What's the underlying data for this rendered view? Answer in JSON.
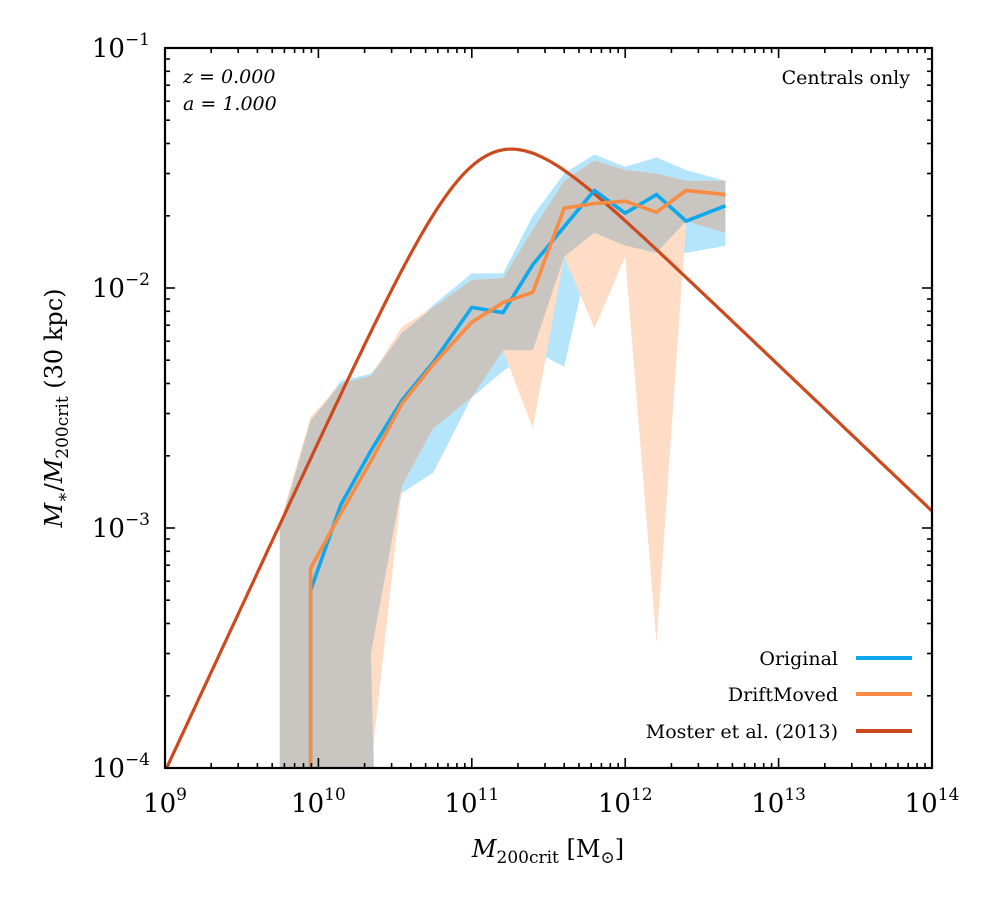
{
  "chart_data": {
    "type": "line",
    "xscale": "log",
    "yscale": "log",
    "xlim": [
      1000000000.0,
      100000000000000.0
    ],
    "ylim": [
      0.0001,
      0.1
    ],
    "x_ticks": [
      {
        "value": 1000000000.0,
        "base": "10",
        "exp": "9"
      },
      {
        "value": 10000000000.0,
        "base": "10",
        "exp": "10"
      },
      {
        "value": 100000000000.0,
        "base": "10",
        "exp": "11"
      },
      {
        "value": 1000000000000.0,
        "base": "10",
        "exp": "12"
      },
      {
        "value": 10000000000000.0,
        "base": "10",
        "exp": "13"
      },
      {
        "value": 100000000000000.0,
        "base": "10",
        "exp": "14"
      }
    ],
    "y_ticks": [
      {
        "value": 0.0001,
        "base": "10",
        "exp": "−4"
      },
      {
        "value": 0.001,
        "base": "10",
        "exp": "−3"
      },
      {
        "value": 0.01,
        "base": "10",
        "exp": "−2"
      },
      {
        "value": 0.1,
        "base": "10",
        "exp": "−1"
      }
    ],
    "xlabel": {
      "main": "M",
      "sub": "200crit",
      "unit": " [M",
      "unit_sub": "⊙",
      "close": "]"
    },
    "ylabel": {
      "m1": "M",
      "s1": "∗",
      "slash": "/",
      "m2": "M",
      "s2": "200crit",
      "rest": " (30 kpc)"
    },
    "annotations": {
      "redshift": "z = 0.000",
      "scale_factor": "a = 1.000",
      "selection": "Centrals only"
    },
    "legend_position": "lower-right",
    "series": [
      {
        "name": "Original",
        "color": "#0ea8ec",
        "style": "line",
        "x": [
          8900000000.0,
          14000000000.0,
          22000000000.0,
          35000000000.0,
          56000000000.0,
          100000000000.0,
          160000000000.0,
          250000000000.0,
          400000000000.0,
          630000000000.0,
          1000000000000.0,
          1600000000000.0,
          2500000000000.0,
          4500000000000.0
        ],
        "y": [
          0.00055,
          0.00125,
          0.0021,
          0.0034,
          0.0049,
          0.0083,
          0.0079,
          0.0125,
          0.018,
          0.0255,
          0.0205,
          0.0245,
          0.019,
          0.022
        ],
        "band_low": [
          0.0001,
          0.0001,
          0.0003,
          0.0014,
          0.0017,
          0.0035,
          0.0045,
          0.0055,
          0.0047,
          0.017,
          0.015,
          0.014,
          0.014,
          0.015
        ],
        "band_high": [
          0.0028,
          0.0041,
          0.0044,
          0.0065,
          0.0085,
          0.0115,
          0.0115,
          0.02,
          0.03,
          0.036,
          0.032,
          0.035,
          0.031,
          0.028
        ]
      },
      {
        "name": "DriftMoved",
        "color": "#f98b42",
        "style": "line",
        "x": [
          8900000000.0,
          14000000000.0,
          22000000000.0,
          35000000000.0,
          56000000000.0,
          100000000000.0,
          160000000000.0,
          250000000000.0,
          400000000000.0,
          630000000000.0,
          1000000000000.0,
          1600000000000.0,
          2500000000000.0,
          4500000000000.0
        ],
        "y": [
          0.00068,
          0.00115,
          0.0019,
          0.0033,
          0.0048,
          0.0072,
          0.0087,
          0.0096,
          0.0215,
          0.0225,
          0.023,
          0.0207,
          0.0255,
          0.0245
        ],
        "band_low": [
          0.0001,
          0.0001,
          0.0001,
          0.0015,
          0.0026,
          0.0035,
          0.0055,
          0.0026,
          0.0135,
          0.0068,
          0.0135,
          0.00033,
          0.019,
          0.017
        ],
        "band_high": [
          0.0029,
          0.004,
          0.0043,
          0.0069,
          0.0083,
          0.0108,
          0.011,
          0.0175,
          0.028,
          0.034,
          0.031,
          0.03,
          0.028,
          0.028
        ]
      },
      {
        "name": "Moster et al. (2013)",
        "color": "#cc4a1e",
        "style": "model",
        "model": {
          "N": 0.0351,
          "M1": 120000000000.0,
          "beta": 1.376,
          "gamma": 0.608
        }
      }
    ],
    "overlap_color": "#c9c6c1",
    "original_band_color": "#b5e5fb",
    "drift_band_color": "#ffdcc6",
    "band_x_start": 5600000000.0,
    "band_x_inner_end": 23000000000.0
  }
}
